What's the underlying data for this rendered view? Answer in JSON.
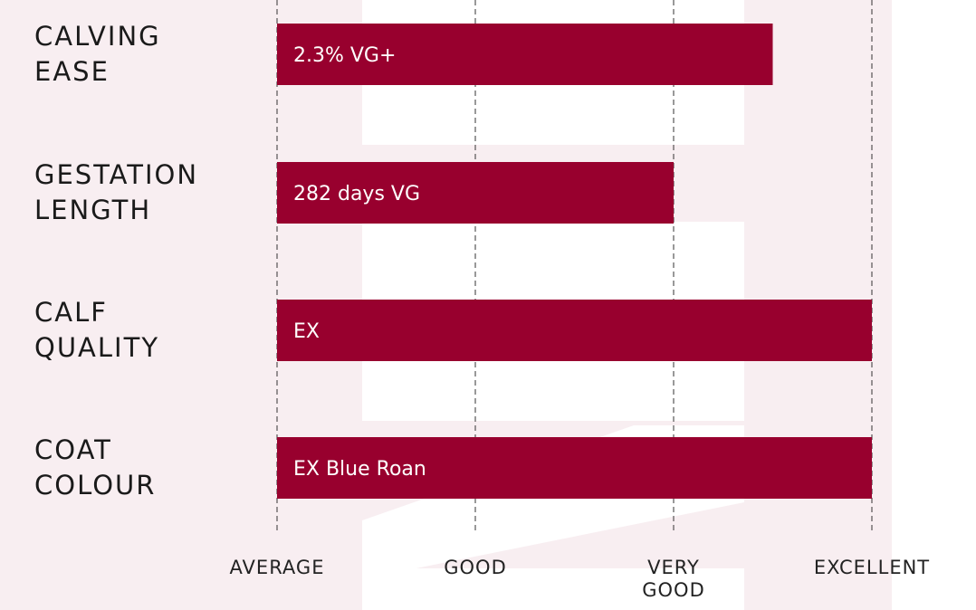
{
  "colors": {
    "bar": "#98002e",
    "bar_text": "#ffffff",
    "label_text": "#1a1a1a",
    "tick_text": "#222222",
    "watermark": "#f8eef1",
    "gridline": "#333333"
  },
  "chart_data": {
    "type": "bar",
    "orientation": "horizontal",
    "scale": [
      "AVERAGE",
      "GOOD",
      "VERY GOOD",
      "EXCELLENT"
    ],
    "tick_labels": [
      [
        "AVERAGE"
      ],
      [
        "GOOD"
      ],
      [
        "VERY",
        "GOOD"
      ],
      [
        "EXCELLENT"
      ]
    ],
    "categories": [
      [
        "CALVING",
        "EASE"
      ],
      [
        "GESTATION",
        "LENGTH"
      ],
      [
        "CALF",
        "QUALITY"
      ],
      [
        "COAT",
        "COLOUR"
      ]
    ],
    "values": [
      2.5,
      2.0,
      3.0,
      3.0
    ],
    "bar_labels": [
      "2.3% VG+",
      "282 days VG",
      "EX",
      "EX Blue Roan"
    ],
    "xlim": [
      0,
      3
    ],
    "grid": true,
    "grid_style": "dashed vertical lines at each rating",
    "legend": "none",
    "title": "",
    "xlabel": "",
    "ylabel": ""
  }
}
